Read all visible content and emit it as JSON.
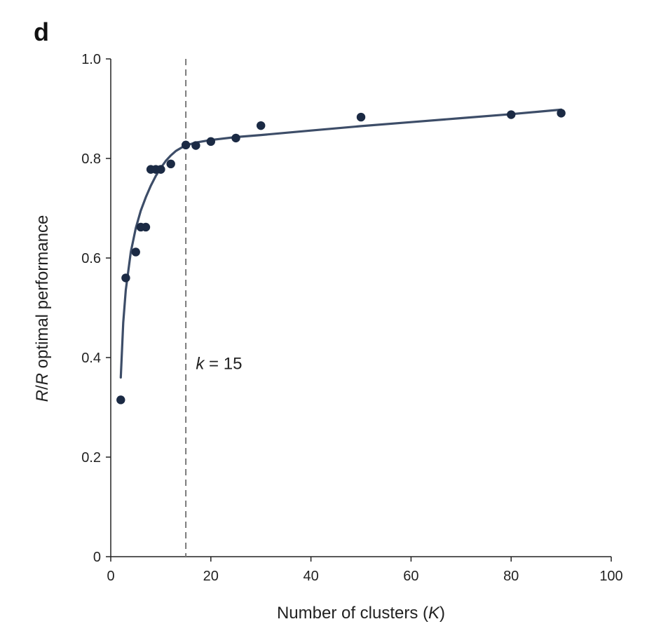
{
  "panel_label": "d",
  "chart_data": {
    "type": "scatter",
    "title": "",
    "xlabel": {
      "prefix": "Number of clusters (",
      "var": "K",
      "suffix": ")"
    },
    "ylabel": {
      "var1": "R",
      "sep": "/",
      "var2": "R",
      "suffix": " optimal performance"
    },
    "xlim": [
      0,
      100
    ],
    "ylim": [
      0,
      1.0
    ],
    "xticks": [
      0,
      20,
      40,
      60,
      80,
      100
    ],
    "xtick_labels": [
      "0",
      "20",
      "40",
      "60",
      "80",
      "100"
    ],
    "yticks": [
      0,
      0.2,
      0.4,
      0.6,
      0.8,
      1.0
    ],
    "ytick_labels": [
      "0",
      "0.2",
      "0.4",
      "0.6",
      "0.8",
      "1.0"
    ],
    "grid": false,
    "colors": {
      "points": "#1b2a44",
      "fit": "#3d4d68",
      "vline": "#7a7a7a",
      "axis": "#222222"
    },
    "points": [
      {
        "x": 2,
        "y": 0.315
      },
      {
        "x": 3,
        "y": 0.56
      },
      {
        "x": 5,
        "y": 0.612
      },
      {
        "x": 6,
        "y": 0.662
      },
      {
        "x": 7,
        "y": 0.662
      },
      {
        "x": 8,
        "y": 0.778
      },
      {
        "x": 9,
        "y": 0.778
      },
      {
        "x": 10,
        "y": 0.778
      },
      {
        "x": 12,
        "y": 0.789
      },
      {
        "x": 15,
        "y": 0.827
      },
      {
        "x": 17,
        "y": 0.826
      },
      {
        "x": 20,
        "y": 0.834
      },
      {
        "x": 25,
        "y": 0.841
      },
      {
        "x": 30,
        "y": 0.866
      },
      {
        "x": 50,
        "y": 0.883
      },
      {
        "x": 80,
        "y": 0.888
      },
      {
        "x": 90,
        "y": 0.891
      }
    ],
    "fit_curve": [
      {
        "x": 2,
        "y": 0.36
      },
      {
        "x": 2.5,
        "y": 0.47
      },
      {
        "x": 3,
        "y": 0.535
      },
      {
        "x": 4,
        "y": 0.612
      },
      {
        "x": 5,
        "y": 0.66
      },
      {
        "x": 6,
        "y": 0.695
      },
      {
        "x": 7,
        "y": 0.722
      },
      {
        "x": 8,
        "y": 0.745
      },
      {
        "x": 9,
        "y": 0.765
      },
      {
        "x": 10,
        "y": 0.781
      },
      {
        "x": 11,
        "y": 0.795
      },
      {
        "x": 12,
        "y": 0.806
      },
      {
        "x": 13,
        "y": 0.815
      },
      {
        "x": 14,
        "y": 0.821
      },
      {
        "x": 15,
        "y": 0.826
      },
      {
        "x": 17,
        "y": 0.832
      },
      {
        "x": 20,
        "y": 0.837
      },
      {
        "x": 25,
        "y": 0.843
      },
      {
        "x": 30,
        "y": 0.847
      },
      {
        "x": 40,
        "y": 0.856
      },
      {
        "x": 50,
        "y": 0.865
      },
      {
        "x": 60,
        "y": 0.873
      },
      {
        "x": 70,
        "y": 0.881
      },
      {
        "x": 80,
        "y": 0.889
      },
      {
        "x": 90,
        "y": 0.898
      }
    ],
    "vline": {
      "x": 15
    },
    "annotation": {
      "var": "k",
      "rest": " = 15",
      "x": 17,
      "y": 0.377
    }
  }
}
